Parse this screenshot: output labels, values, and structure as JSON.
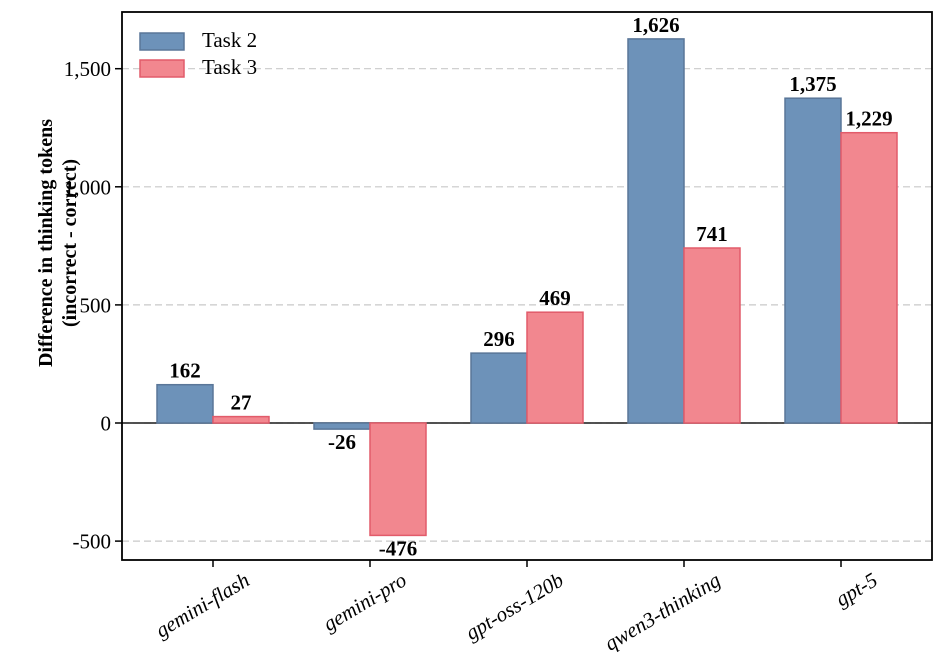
{
  "figure": {
    "background": "#ffffff"
  },
  "colors": {
    "task2_fill": "#6D92B9",
    "task2_edge": "#5A7698",
    "task3_fill": "#F2878F",
    "task3_edge": "#E25B6A",
    "grid": "#c9c9c9",
    "axis": "#000000",
    "zero_line": "#1a1a1a",
    "label_text": "#000000"
  },
  "legend": {
    "items": [
      {
        "label": "Task 2",
        "color_key": "task2"
      },
      {
        "label": "Task 3",
        "color_key": "task3"
      }
    ]
  },
  "chart_data": {
    "type": "bar",
    "title": "",
    "xlabel": "",
    "ylabel_lines": [
      "Difference in thinking tokens",
      "(incorrect - correct)"
    ],
    "categories": [
      "gemini-flash",
      "gemini-pro",
      "gpt-oss-120b",
      "qwen3-thinking",
      "gpt-5"
    ],
    "series": [
      {
        "name": "Task 2",
        "values": [
          162,
          -26,
          296,
          1626,
          1375
        ],
        "value_labels": [
          "162",
          "-26",
          "296",
          "1,626",
          "1,375"
        ]
      },
      {
        "name": "Task 3",
        "values": [
          27,
          -476,
          469,
          741,
          1229
        ],
        "value_labels": [
          "27",
          "-476",
          "469",
          "741",
          "1,229"
        ]
      }
    ],
    "yticks": [
      -500,
      0,
      500,
      1000,
      1500
    ],
    "ytick_labels": [
      "-500",
      "0",
      "500",
      "1,000",
      "1,500"
    ],
    "ylim": [
      -580,
      1740
    ],
    "grid": "horizontal-dashed",
    "zero_line": true,
    "legend_position": "upper-left",
    "x_tick_label_style": "italic, rotated"
  }
}
